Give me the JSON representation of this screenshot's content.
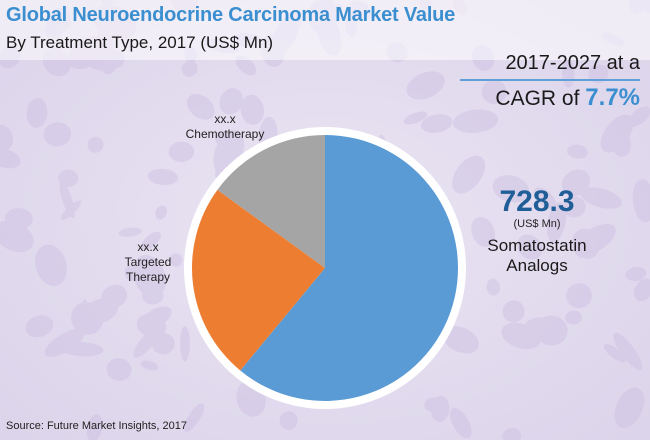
{
  "header": {
    "title": "Global Neuroendocrine Carcinoma Market Value",
    "subtitle": "By Treatment Type, 2017 (US$ Mn)"
  },
  "cagr": {
    "line1": "2017-2027 at a",
    "prefix": "CAGR of",
    "value": "7.7%"
  },
  "chart_data": {
    "type": "pie",
    "title": "Global Neuroendocrine Carcinoma Market Value",
    "subtitle": "By Treatment Type, 2017 (US$ Mn)",
    "slices": [
      {
        "label": "Somatostatin Analogs",
        "value_text": "728.3",
        "unit": "(US$ Mn)",
        "share": 0.61,
        "color": "#5b9bd5"
      },
      {
        "label": "Targeted Therapy",
        "value_text": "xx.x",
        "share": 0.24,
        "color": "#ed7d31"
      },
      {
        "label": "Chemotherapy",
        "value_text": "xx.x",
        "share": 0.15,
        "color": "#a5a5a5"
      }
    ]
  },
  "annotations": {
    "chemo": {
      "value": "xx.x",
      "label": "Chemotherapy"
    },
    "targeted": {
      "value": "xx.x",
      "label": "Targeted",
      "label2": "Therapy"
    },
    "soma": {
      "value": "728.3",
      "unit": "(US$ Mn)",
      "label": "Somatostatin",
      "label2": "Analogs"
    }
  },
  "source": "Source: Future Market Insights, 2017",
  "colors": {
    "accent": "#3b8fd0",
    "dark_blue": "#1f5e96",
    "blue": "#5b9bd5",
    "orange": "#ed7d31",
    "gray": "#a5a5a5"
  }
}
